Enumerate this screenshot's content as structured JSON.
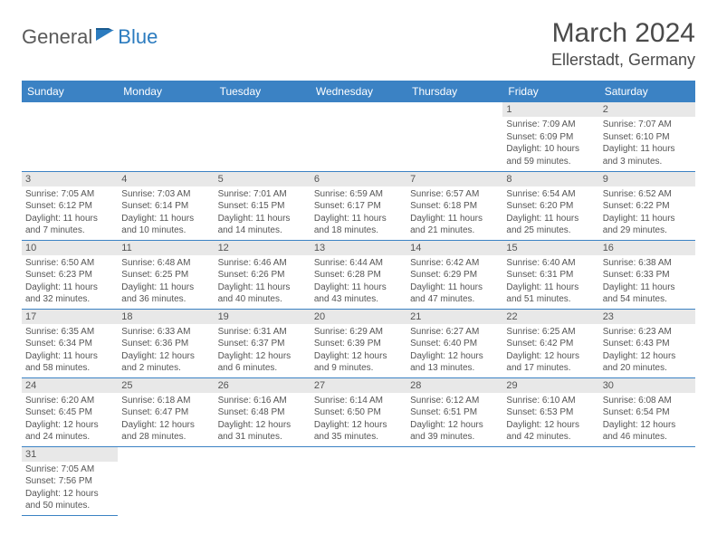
{
  "logo": {
    "general": "General",
    "blue": "Blue"
  },
  "title": "March 2024",
  "location": "Ellerstadt, Germany",
  "colors": {
    "header_bg": "#3b82c4",
    "header_text": "#ffffff",
    "daynum_bg": "#e8e8e8",
    "text": "#555555",
    "row_border": "#3b82c4",
    "logo_gray": "#5a5a5a",
    "logo_blue": "#2b7bbf"
  },
  "day_names": [
    "Sunday",
    "Monday",
    "Tuesday",
    "Wednesday",
    "Thursday",
    "Friday",
    "Saturday"
  ],
  "weeks": [
    [
      null,
      null,
      null,
      null,
      null,
      {
        "n": "1",
        "sr": "Sunrise: 7:09 AM",
        "ss": "Sunset: 6:09 PM",
        "dl": "Daylight: 10 hours and 59 minutes."
      },
      {
        "n": "2",
        "sr": "Sunrise: 7:07 AM",
        "ss": "Sunset: 6:10 PM",
        "dl": "Daylight: 11 hours and 3 minutes."
      }
    ],
    [
      {
        "n": "3",
        "sr": "Sunrise: 7:05 AM",
        "ss": "Sunset: 6:12 PM",
        "dl": "Daylight: 11 hours and 7 minutes."
      },
      {
        "n": "4",
        "sr": "Sunrise: 7:03 AM",
        "ss": "Sunset: 6:14 PM",
        "dl": "Daylight: 11 hours and 10 minutes."
      },
      {
        "n": "5",
        "sr": "Sunrise: 7:01 AM",
        "ss": "Sunset: 6:15 PM",
        "dl": "Daylight: 11 hours and 14 minutes."
      },
      {
        "n": "6",
        "sr": "Sunrise: 6:59 AM",
        "ss": "Sunset: 6:17 PM",
        "dl": "Daylight: 11 hours and 18 minutes."
      },
      {
        "n": "7",
        "sr": "Sunrise: 6:57 AM",
        "ss": "Sunset: 6:18 PM",
        "dl": "Daylight: 11 hours and 21 minutes."
      },
      {
        "n": "8",
        "sr": "Sunrise: 6:54 AM",
        "ss": "Sunset: 6:20 PM",
        "dl": "Daylight: 11 hours and 25 minutes."
      },
      {
        "n": "9",
        "sr": "Sunrise: 6:52 AM",
        "ss": "Sunset: 6:22 PM",
        "dl": "Daylight: 11 hours and 29 minutes."
      }
    ],
    [
      {
        "n": "10",
        "sr": "Sunrise: 6:50 AM",
        "ss": "Sunset: 6:23 PM",
        "dl": "Daylight: 11 hours and 32 minutes."
      },
      {
        "n": "11",
        "sr": "Sunrise: 6:48 AM",
        "ss": "Sunset: 6:25 PM",
        "dl": "Daylight: 11 hours and 36 minutes."
      },
      {
        "n": "12",
        "sr": "Sunrise: 6:46 AM",
        "ss": "Sunset: 6:26 PM",
        "dl": "Daylight: 11 hours and 40 minutes."
      },
      {
        "n": "13",
        "sr": "Sunrise: 6:44 AM",
        "ss": "Sunset: 6:28 PM",
        "dl": "Daylight: 11 hours and 43 minutes."
      },
      {
        "n": "14",
        "sr": "Sunrise: 6:42 AM",
        "ss": "Sunset: 6:29 PM",
        "dl": "Daylight: 11 hours and 47 minutes."
      },
      {
        "n": "15",
        "sr": "Sunrise: 6:40 AM",
        "ss": "Sunset: 6:31 PM",
        "dl": "Daylight: 11 hours and 51 minutes."
      },
      {
        "n": "16",
        "sr": "Sunrise: 6:38 AM",
        "ss": "Sunset: 6:33 PM",
        "dl": "Daylight: 11 hours and 54 minutes."
      }
    ],
    [
      {
        "n": "17",
        "sr": "Sunrise: 6:35 AM",
        "ss": "Sunset: 6:34 PM",
        "dl": "Daylight: 11 hours and 58 minutes."
      },
      {
        "n": "18",
        "sr": "Sunrise: 6:33 AM",
        "ss": "Sunset: 6:36 PM",
        "dl": "Daylight: 12 hours and 2 minutes."
      },
      {
        "n": "19",
        "sr": "Sunrise: 6:31 AM",
        "ss": "Sunset: 6:37 PM",
        "dl": "Daylight: 12 hours and 6 minutes."
      },
      {
        "n": "20",
        "sr": "Sunrise: 6:29 AM",
        "ss": "Sunset: 6:39 PM",
        "dl": "Daylight: 12 hours and 9 minutes."
      },
      {
        "n": "21",
        "sr": "Sunrise: 6:27 AM",
        "ss": "Sunset: 6:40 PM",
        "dl": "Daylight: 12 hours and 13 minutes."
      },
      {
        "n": "22",
        "sr": "Sunrise: 6:25 AM",
        "ss": "Sunset: 6:42 PM",
        "dl": "Daylight: 12 hours and 17 minutes."
      },
      {
        "n": "23",
        "sr": "Sunrise: 6:23 AM",
        "ss": "Sunset: 6:43 PM",
        "dl": "Daylight: 12 hours and 20 minutes."
      }
    ],
    [
      {
        "n": "24",
        "sr": "Sunrise: 6:20 AM",
        "ss": "Sunset: 6:45 PM",
        "dl": "Daylight: 12 hours and 24 minutes."
      },
      {
        "n": "25",
        "sr": "Sunrise: 6:18 AM",
        "ss": "Sunset: 6:47 PM",
        "dl": "Daylight: 12 hours and 28 minutes."
      },
      {
        "n": "26",
        "sr": "Sunrise: 6:16 AM",
        "ss": "Sunset: 6:48 PM",
        "dl": "Daylight: 12 hours and 31 minutes."
      },
      {
        "n": "27",
        "sr": "Sunrise: 6:14 AM",
        "ss": "Sunset: 6:50 PM",
        "dl": "Daylight: 12 hours and 35 minutes."
      },
      {
        "n": "28",
        "sr": "Sunrise: 6:12 AM",
        "ss": "Sunset: 6:51 PM",
        "dl": "Daylight: 12 hours and 39 minutes."
      },
      {
        "n": "29",
        "sr": "Sunrise: 6:10 AM",
        "ss": "Sunset: 6:53 PM",
        "dl": "Daylight: 12 hours and 42 minutes."
      },
      {
        "n": "30",
        "sr": "Sunrise: 6:08 AM",
        "ss": "Sunset: 6:54 PM",
        "dl": "Daylight: 12 hours and 46 minutes."
      }
    ],
    [
      {
        "n": "31",
        "sr": "Sunrise: 7:05 AM",
        "ss": "Sunset: 7:56 PM",
        "dl": "Daylight: 12 hours and 50 minutes."
      },
      null,
      null,
      null,
      null,
      null,
      null
    ]
  ]
}
